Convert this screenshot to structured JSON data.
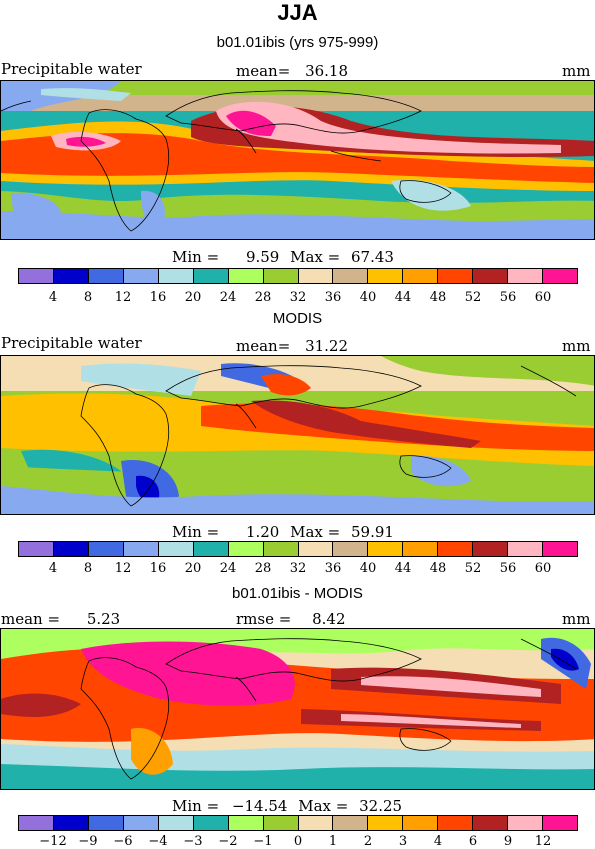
{
  "title": "JJA",
  "panels": [
    {
      "title": "b01.01ibis (yrs 975-999)",
      "left_label": "Precipitable water",
      "center_label": "mean=",
      "center_value": "36.18",
      "right_label": "mm",
      "min_label": "Min =",
      "min_value": "9.59",
      "max_label": "Max =",
      "max_value": "67.43",
      "colorbar_ticks": [
        "4",
        "8",
        "12",
        "16",
        "20",
        "24",
        "28",
        "32",
        "36",
        "40",
        "44",
        "48",
        "52",
        "56",
        "60"
      ],
      "colors": [
        "#9370db",
        "#0000cd",
        "#4169e1",
        "#87a9ef",
        "#b0e0e6",
        "#20b2aa",
        "#adff5f",
        "#9acd32",
        "#f5deb3",
        "#d2b48c",
        "#ffc000",
        "#ff9f00",
        "#ff4500",
        "#b22222",
        "#ffb6c1",
        "#ff1493"
      ]
    },
    {
      "title": "MODIS",
      "left_label": "Precipitable water",
      "center_label": "mean=",
      "center_value": "31.22",
      "right_label": "mm",
      "min_label": "Min =",
      "min_value": "1.20",
      "max_label": "Max =",
      "max_value": "59.91",
      "colorbar_ticks": [
        "4",
        "8",
        "12",
        "16",
        "20",
        "24",
        "28",
        "32",
        "36",
        "40",
        "44",
        "48",
        "52",
        "56",
        "60"
      ],
      "colors": [
        "#9370db",
        "#0000cd",
        "#4169e1",
        "#87a9ef",
        "#b0e0e6",
        "#20b2aa",
        "#adff5f",
        "#9acd32",
        "#f5deb3",
        "#d2b48c",
        "#ffc000",
        "#ff9f00",
        "#ff4500",
        "#b22222",
        "#ffb6c1",
        "#ff1493"
      ]
    },
    {
      "title": "b01.01ibis - MODIS",
      "left_label": "mean =",
      "left_value": "5.23",
      "center_label": "rmse =",
      "center_value": "8.42",
      "right_label": "mm",
      "min_label": "Min =",
      "min_value": "−14.54",
      "max_label": "Max =",
      "max_value": "32.25",
      "colorbar_ticks": [
        "−12",
        "−9",
        "−6",
        "−4",
        "−3",
        "−2",
        "−1",
        "0",
        "1",
        "2",
        "3",
        "4",
        "6",
        "9",
        "12"
      ],
      "colors": [
        "#9370db",
        "#0000cd",
        "#4169e1",
        "#87a9ef",
        "#b0e0e6",
        "#20b2aa",
        "#adff5f",
        "#9acd32",
        "#f5deb3",
        "#d2b48c",
        "#ffc000",
        "#ff9f00",
        "#ff4500",
        "#b22222",
        "#ffb6c1",
        "#ff1493"
      ]
    }
  ],
  "chart_data": [
    {
      "type": "heatmap",
      "title": "b01.01ibis (yrs 975-999)",
      "variable": "Precipitable water",
      "units": "mm",
      "mean": 36.18,
      "min": 9.59,
      "max": 67.43,
      "levels": [
        4,
        8,
        12,
        16,
        20,
        24,
        28,
        32,
        36,
        40,
        44,
        48,
        52,
        56,
        60
      ]
    },
    {
      "type": "heatmap",
      "title": "MODIS",
      "variable": "Precipitable water",
      "units": "mm",
      "mean": 31.22,
      "min": 1.2,
      "max": 59.91,
      "levels": [
        4,
        8,
        12,
        16,
        20,
        24,
        28,
        32,
        36,
        40,
        44,
        48,
        52,
        56,
        60
      ]
    },
    {
      "type": "heatmap",
      "title": "b01.01ibis - MODIS",
      "units": "mm",
      "mean": 5.23,
      "rmse": 8.42,
      "min": -14.54,
      "max": 32.25,
      "levels": [
        -12,
        -9,
        -6,
        -4,
        -3,
        -2,
        -1,
        0,
        1,
        2,
        3,
        4,
        6,
        9,
        12
      ]
    }
  ]
}
